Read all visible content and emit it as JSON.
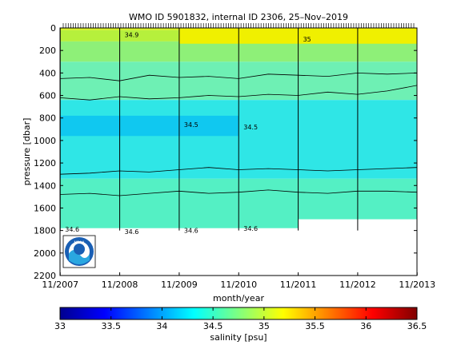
{
  "chart_data": [
    {
      "type": "heatmap",
      "title": "WMO ID 5901832, internal ID 2306, 25–Nov–2019",
      "xlabel": "month/year",
      "ylabel": "pressure [dbar]",
      "x_tick_labels": [
        "11/2007",
        "11/2008",
        "11/2009",
        "11/2010",
        "11/2011",
        "11/2012",
        "11/2013"
      ],
      "x_range": [
        2007.83,
        2013.83
      ],
      "y_ticks": [
        0,
        200,
        400,
        600,
        800,
        1000,
        1200,
        1400,
        1600,
        1800,
        2000,
        2200
      ],
      "y_range": [
        2200,
        0
      ],
      "y_reversed": true,
      "profile_gaps_at": [
        "11/2007",
        "11/2008",
        "11/2009",
        "11/2010",
        "11/2011",
        "11/2012"
      ],
      "bottom_depth": [
        {
          "x": "11/2007",
          "y": 1780
        },
        {
          "x": "11/2011",
          "y": 1760
        },
        {
          "x": "11/2011",
          "y": 1700
        },
        {
          "x": "11/2013",
          "y": 1700
        }
      ],
      "bands": [
        {
          "range": [
            0,
            20
          ],
          "color": "#d8f020"
        },
        {
          "range": [
            20,
            120
          ],
          "color": "#b6f03c"
        },
        {
          "range": [
            120,
            300
          ],
          "color": "#8ef078"
        },
        {
          "range": [
            300,
            640
          ],
          "color": "#6ef0b4"
        },
        {
          "range": [
            640,
            1340
          ],
          "color": "#2fe6e6"
        },
        {
          "range": [
            1340,
            1780
          ],
          "color": "#54f0c4"
        }
      ],
      "fresh_patch": {
        "x_range": [
          "11/2007",
          "11/2010"
        ],
        "pressure_range": [
          780,
          960
        ],
        "color": "#10c8f0"
      },
      "salty_patch": {
        "x_range": [
          "11/2009",
          "11/2013"
        ],
        "pressure_range": [
          0,
          140
        ],
        "color": "#f0f000"
      },
      "contour_lines": [
        {
          "pressure": [
            1300,
            1290,
            1270,
            1280,
            1260,
            1240,
            1260,
            1250,
            1260,
            1270,
            1260,
            1250,
            1240
          ]
        },
        {
          "pressure": [
            1480,
            1470,
            1490,
            1470,
            1450,
            1470,
            1460,
            1440,
            1460,
            1470,
            1450,
            1450,
            1460
          ]
        },
        {
          "pressure": [
            620,
            640,
            610,
            630,
            620,
            600,
            610,
            590,
            600,
            570,
            590,
            560,
            510
          ]
        },
        {
          "pressure": [
            450,
            440,
            470,
            420,
            440,
            430,
            450,
            410,
            420,
            430,
            400,
            410,
            400
          ]
        }
      ],
      "contour_labels": [
        {
          "text": "34.6",
          "x": "11/2007",
          "y": 1790
        },
        {
          "text": "34.6",
          "x": "11/2008",
          "y": 1810
        },
        {
          "text": "34.6",
          "x": "11/2009",
          "y": 1800
        },
        {
          "text": "34.6",
          "x": "11/2010",
          "y": 1780
        },
        {
          "text": "34.5",
          "x": "11/2009",
          "y": 860
        },
        {
          "text": "34.5",
          "x": "11/2010",
          "y": 880
        },
        {
          "text": "35",
          "x": "11/2011",
          "y": 100
        },
        {
          "text": "34.9",
          "x": "11/2008",
          "y": 60
        }
      ],
      "colorbar": {
        "label": "salinity [psu]",
        "range": [
          33,
          36.5
        ],
        "tick_labels": [
          "33",
          "33.5",
          "34",
          "34.5",
          "35",
          "35.5",
          "36",
          "36.5"
        ],
        "colormap": "jet"
      }
    }
  ],
  "logo": {
    "text": "NOAA"
  }
}
